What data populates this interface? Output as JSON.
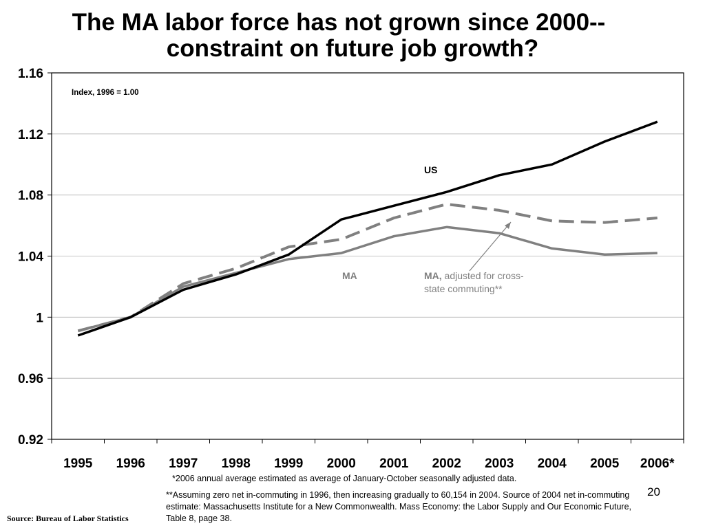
{
  "slide": {
    "title_line1": "The MA labor force has not grown since 2000--",
    "title_line2": "constraint on future job growth?",
    "footnote1": "*2006 annual average estimated as average of January-October seasonally adjusted data.",
    "footnote2": "**Assuming zero net in-commuting in 1996, then increasing gradually to 60,154 in 2004.  Source of 2004 net in-commuting estimate: Massachusetts Institute for a New Commonwealth.  Mass Economy: the Labor Supply and Our Economic Future, Table 8, page 38.",
    "source": "Source: Bureau of Labor Statistics",
    "page_number": "20"
  },
  "chart_data": {
    "type": "line",
    "annotation": "Index, 1996 = 1.00",
    "categories": [
      "1995",
      "1996",
      "1997",
      "1998",
      "1999",
      "2000",
      "2001",
      "2002",
      "2003",
      "2004",
      "2005",
      "2006*"
    ],
    "ylim": [
      0.92,
      1.16
    ],
    "yticks": [
      0.92,
      0.96,
      1,
      1.04,
      1.08,
      1.12,
      1.16
    ],
    "ytick_labels": [
      "0.92",
      "0.96",
      "1",
      "1.04",
      "1.08",
      "1.12",
      "1.16"
    ],
    "grid": true,
    "series": [
      {
        "name": "US",
        "style": "solid",
        "color": "#000000",
        "values": [
          0.988,
          1.0,
          1.018,
          1.028,
          1.041,
          1.064,
          1.073,
          1.082,
          1.093,
          1.1,
          1.115,
          1.128
        ]
      },
      {
        "name": "MA",
        "style": "solid",
        "color": "#808080",
        "values": [
          0.991,
          1.0,
          1.02,
          1.029,
          1.038,
          1.042,
          1.053,
          1.059,
          1.055,
          1.045,
          1.041,
          1.042
        ]
      },
      {
        "name": "MA, adjusted for cross-state commuting**",
        "style": "dashed",
        "color": "#808080",
        "values": [
          0.991,
          1.0,
          1.022,
          1.032,
          1.046,
          1.051,
          1.065,
          1.074,
          1.07,
          1.063,
          1.062,
          1.065
        ]
      }
    ],
    "labels": {
      "us": "US",
      "ma": "MA",
      "ma_adj_bold": "MA,",
      "ma_adj_rest1": " adjusted for cross-",
      "ma_adj_rest2": "state commuting**"
    }
  }
}
